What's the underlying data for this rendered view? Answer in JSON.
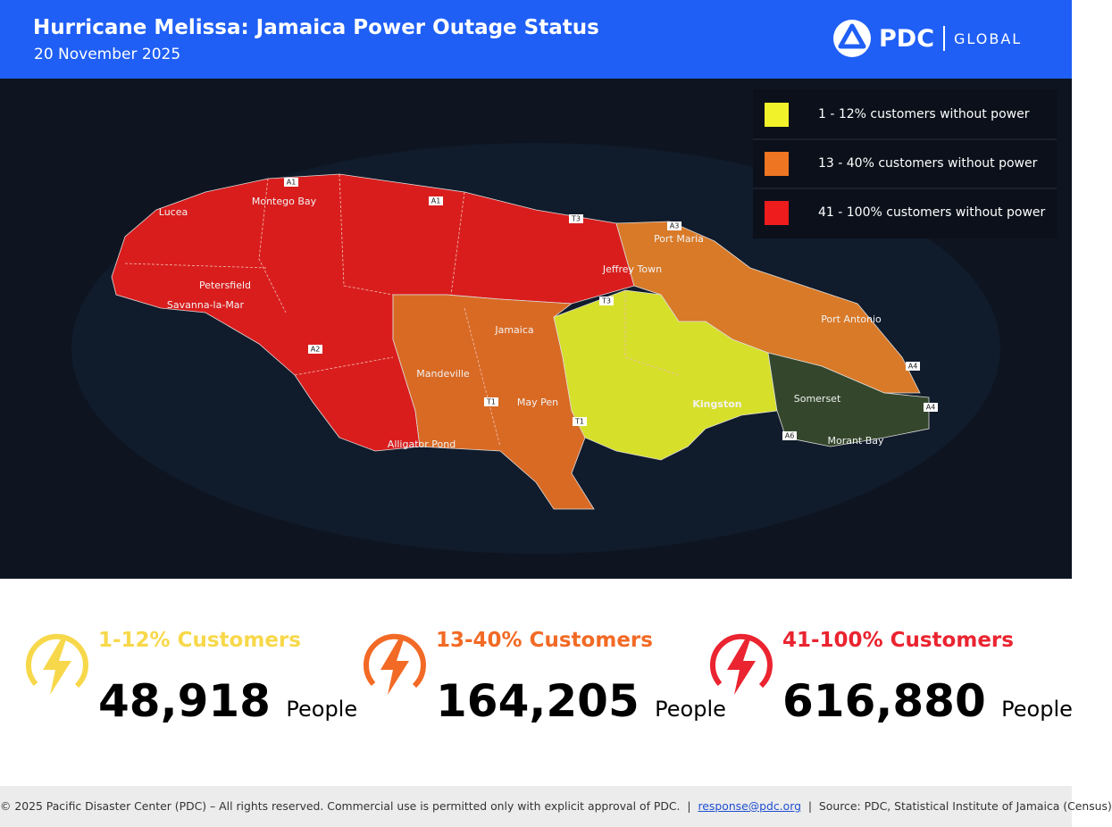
{
  "header": {
    "title": "Hurricane Melissa: Jamaica Power Outage Status",
    "date": "20 November 2025",
    "logo_text": "PDC",
    "logo_subtext": "GLOBAL"
  },
  "legend": [
    {
      "label": "1 - 12% customers without power",
      "color": "#f2f22a"
    },
    {
      "label": "13 - 40% customers without power",
      "color": "#ee7522"
    },
    {
      "label": "41 - 100% customers without power",
      "color": "#ee1c1c"
    }
  ],
  "map": {
    "places": [
      "Montego Bay",
      "Lucea",
      "Petersfield",
      "Savanna-la-Mar",
      "Jamaica",
      "Mandeville",
      "May Pen",
      "Alligator Pond",
      "Kingston",
      "Port Maria",
      "Jeffrey Town",
      "Port Antonio",
      "Somerset",
      "Morant Bay"
    ],
    "roads": [
      "A1",
      "A1",
      "A2",
      "A3",
      "A4",
      "A4",
      "A6",
      "T1",
      "T1",
      "T3",
      "T3"
    ]
  },
  "stats": [
    {
      "label": "1-12% Customers",
      "value": "48,918",
      "unit": "People",
      "color": "#f7d84a"
    },
    {
      "label": "13-40% Customers",
      "value": "164,205",
      "unit": "People",
      "color": "#f26a25"
    },
    {
      "label": "41-100% Customers",
      "value": "616,880",
      "unit": "People",
      "color": "#ea2430"
    }
  ],
  "footer": {
    "copyright": "© 2025 Pacific Disaster Center (PDC) – All rights reserved. Commercial use is permitted only with explicit approval of PDC.",
    "separator": "|",
    "email": "response@pdc.org",
    "source": "Source: PDC, Statistical Institute of Jamaica (Census)"
  }
}
